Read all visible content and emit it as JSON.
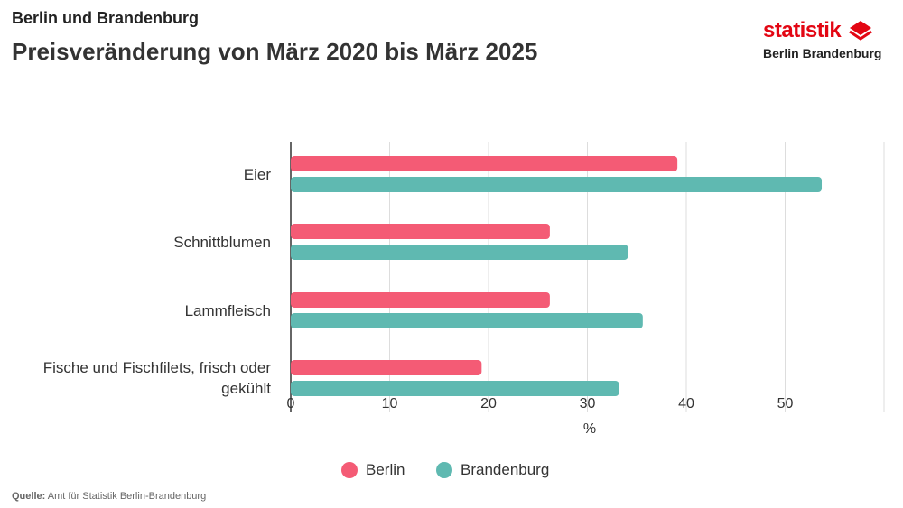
{
  "header": {
    "supertitle": "Berlin und Brandenburg",
    "title": "Preisveränderung von März 2020 bis März 2025"
  },
  "logo": {
    "word": "statistik",
    "sub": "Berlin Brandenburg",
    "icon": "diamond-stack-icon"
  },
  "colors": {
    "berlin": "#f45b75",
    "brandenburg": "#5fb9b1",
    "grid": "#dddddd",
    "axis": "#333333"
  },
  "chart_data": {
    "type": "bar",
    "orientation": "horizontal",
    "categories": [
      "Eier",
      "Schnittblumen",
      "Lammfleisch",
      "Fische und Fischfilets, frisch oder gekühlt"
    ],
    "series": [
      {
        "name": "Berlin",
        "values": [
          39.1,
          26.2,
          26.2,
          19.3
        ]
      },
      {
        "name": "Brandenburg",
        "values": [
          53.7,
          34.1,
          35.6,
          33.2
        ]
      }
    ],
    "xlabel": "%",
    "xlim": [
      0,
      60
    ],
    "xticks": [
      0,
      10,
      20,
      30,
      40,
      50
    ],
    "grid": true,
    "legend_position": "bottom"
  },
  "legend": {
    "items": [
      {
        "label": "Berlin",
        "color": "#f45b75"
      },
      {
        "label": "Brandenburg",
        "color": "#5fb9b1"
      }
    ]
  },
  "source": {
    "label": "Quelle:",
    "text": " Amt für Statistik Berlin-Brandenburg"
  }
}
